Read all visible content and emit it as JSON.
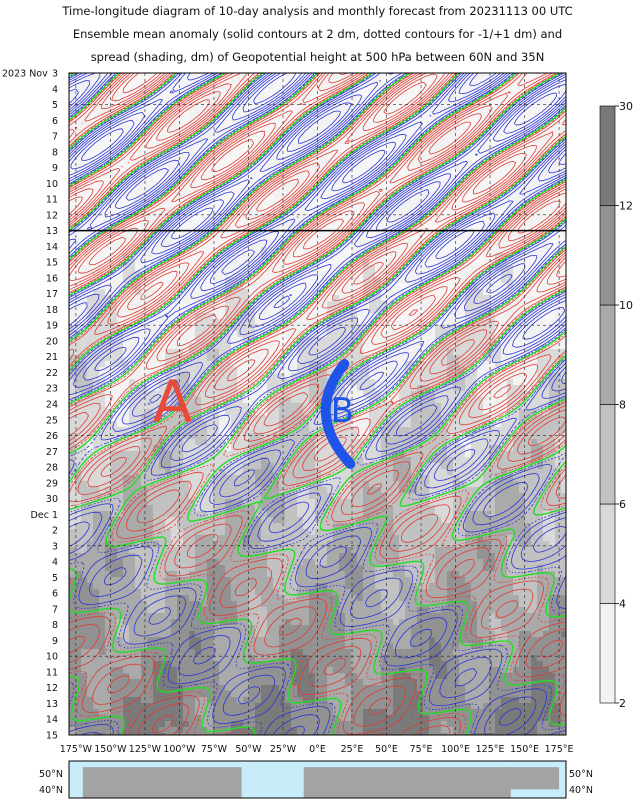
{
  "title": {
    "line1": "Time-longitude diagram of 10-day analysis and monthly forecast from 20231113 00 UTC",
    "line2": "Ensemble mean anomaly (solid contours at 2 dm, dotted contours for -1/+1 dm) and",
    "line3": "spread (shading, dm) of Geopotential height at 500 hPa between 60N and 35N"
  },
  "colors": {
    "positive_contour": "#e03a32",
    "negative_contour": "#2a34d6",
    "zero_contour": "#22dd22",
    "sunday_label": "#cc1a1a",
    "annotation_A": "#e84a3a",
    "annotation_B": "#1e55e8",
    "colorbar_labels": "#2b2b8a",
    "ocean": "#c9ecfa",
    "land": "#a3a3a3"
  },
  "annotations": [
    {
      "label": "A",
      "lon": -105,
      "date": "2023-11-24"
    },
    {
      "label": "B",
      "lon": 18,
      "date": "2023-11-24"
    }
  ],
  "chart_data": {
    "type": "heatmap",
    "x_axis": {
      "range": [
        -180,
        180
      ],
      "ticks": [
        -175,
        -150,
        -125,
        -100,
        -75,
        -50,
        -25,
        0,
        25,
        50,
        75,
        100,
        125,
        150,
        175
      ],
      "tick_labels": [
        "175°W",
        "150°W",
        "125°W",
        "100°W",
        "75°W",
        "50°W",
        "25°W",
        "0°E",
        "25°E",
        "50°E",
        "75°E",
        "100°E",
        "125°E",
        "150°E",
        "175°E"
      ]
    },
    "y_axis": {
      "start": "2023-11-03",
      "end": "2023-12-15",
      "inverted": true,
      "dates": [
        {
          "label": "3",
          "month": "2023 Nov",
          "sunday": false
        },
        {
          "label": "4",
          "sunday": false
        },
        {
          "label": "5",
          "sunday": true
        },
        {
          "label": "6",
          "sunday": false
        },
        {
          "label": "7",
          "sunday": false
        },
        {
          "label": "8",
          "sunday": false
        },
        {
          "label": "9",
          "sunday": false
        },
        {
          "label": "10",
          "sunday": false
        },
        {
          "label": "11",
          "sunday": false
        },
        {
          "label": "12",
          "sunday": true
        },
        {
          "label": "13",
          "sunday": false
        },
        {
          "label": "14",
          "sunday": false
        },
        {
          "label": "15",
          "sunday": false
        },
        {
          "label": "16",
          "sunday": false
        },
        {
          "label": "17",
          "sunday": false
        },
        {
          "label": "18",
          "sunday": false
        },
        {
          "label": "19",
          "sunday": true
        },
        {
          "label": "20",
          "sunday": false
        },
        {
          "label": "21",
          "sunday": false
        },
        {
          "label": "22",
          "sunday": false
        },
        {
          "label": "23",
          "sunday": false
        },
        {
          "label": "24",
          "sunday": false
        },
        {
          "label": "25",
          "sunday": false
        },
        {
          "label": "26",
          "sunday": true
        },
        {
          "label": "27",
          "sunday": false
        },
        {
          "label": "28",
          "sunday": false
        },
        {
          "label": "29",
          "sunday": false
        },
        {
          "label": "30",
          "sunday": false
        },
        {
          "label": "Dec 1",
          "sunday": false
        },
        {
          "label": "2",
          "sunday": false
        },
        {
          "label": "3",
          "sunday": true
        },
        {
          "label": "4",
          "sunday": false
        },
        {
          "label": "5",
          "sunday": false
        },
        {
          "label": "6",
          "sunday": false
        },
        {
          "label": "7",
          "sunday": false
        },
        {
          "label": "8",
          "sunday": false
        },
        {
          "label": "9",
          "sunday": false
        },
        {
          "label": "10",
          "sunday": true
        },
        {
          "label": "11",
          "sunday": false
        },
        {
          "label": "12",
          "sunday": false
        },
        {
          "label": "13",
          "sunday": false
        },
        {
          "label": "14",
          "sunday": false
        },
        {
          "label": "15",
          "sunday": false
        }
      ]
    },
    "analysis_forecast_boundary": "2023-11-13",
    "contour_interval_dm": 2,
    "dotted_contours_dm": [
      -1,
      1
    ],
    "colorbar": {
      "levels": [
        2,
        4,
        6,
        8,
        10,
        12,
        30
      ],
      "shades": [
        "#f2f2f2",
        "#d9d9d9",
        "#c2c2c2",
        "#aaaaaa",
        "#929292",
        "#7a7a7a"
      ],
      "unit": "dm"
    },
    "latitude_band": {
      "labels": [
        "50°N",
        "40°N"
      ],
      "south": 35,
      "north": 60
    },
    "grid": true
  }
}
